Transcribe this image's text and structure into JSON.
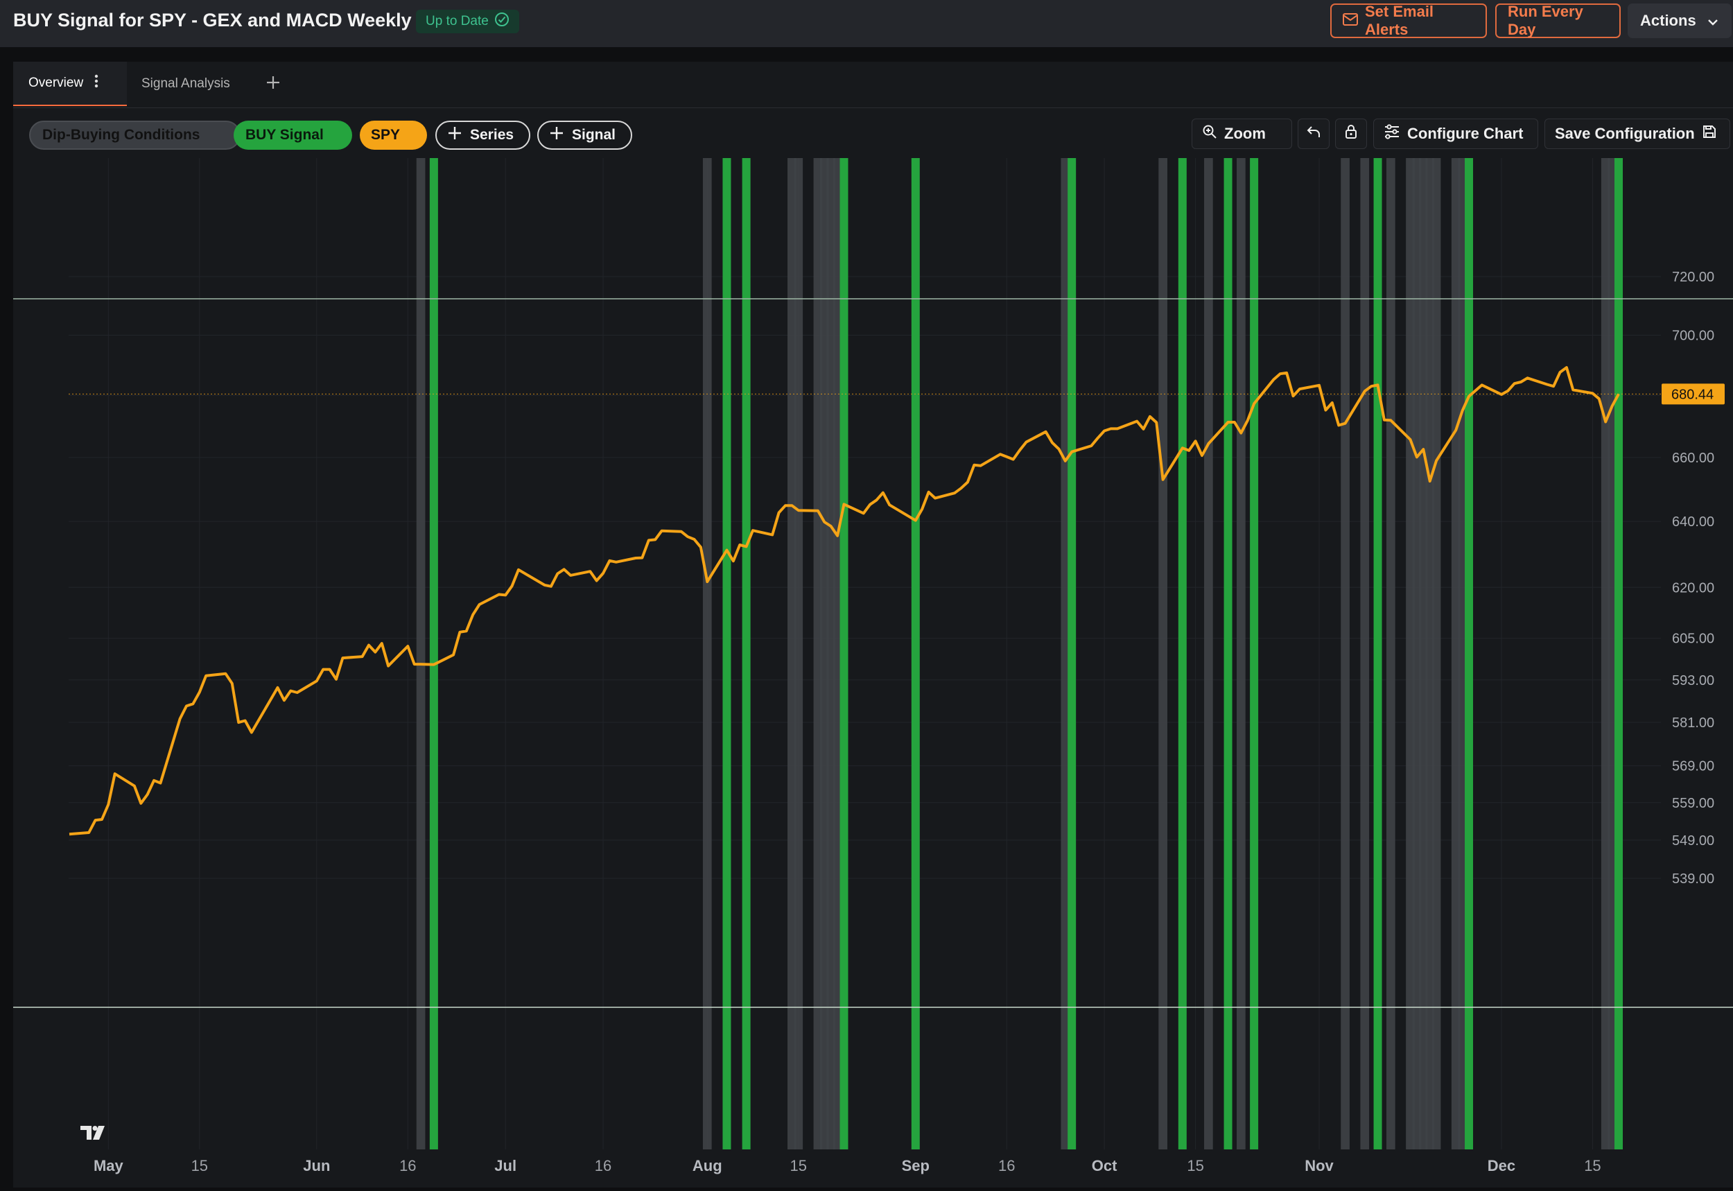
{
  "header": {
    "title": "BUY Signal for SPY - GEX and MACD Weekly",
    "status": "Up to Date",
    "email_alerts_label": "Set Email Alerts",
    "run_label": "Run Every Day",
    "actions_label": "Actions"
  },
  "tabs": [
    {
      "label": "Overview",
      "active": true
    },
    {
      "label": "Signal Analysis",
      "active": false
    }
  ],
  "toolbar": {
    "chips": [
      "Dip-Buying Conditions",
      "BUY Signal",
      "SPY"
    ],
    "add_series_label": "Series",
    "add_signal_label": "Signal",
    "zoom_label": "Zoom",
    "configure_label": "Configure Chart",
    "save_label": "Save Configuration"
  },
  "colors": {
    "accent": "#ff6b3d",
    "series": "#f5a417",
    "buy_signal": "#25a43e",
    "condition": "#3f4247"
  },
  "chart_data": {
    "type": "line",
    "title": "",
    "series": [
      {
        "name": "SPY",
        "color": "#f5a417",
        "values": [
          {
            "x": "2025-04-25",
            "y": 550.6
          },
          {
            "x": "2025-04-28",
            "y": 551.0
          },
          {
            "x": "2025-04-29",
            "y": 554.3
          },
          {
            "x": "2025-04-30",
            "y": 554.5
          },
          {
            "x": "2025-05-01",
            "y": 558.5
          },
          {
            "x": "2025-05-02",
            "y": 566.8
          },
          {
            "x": "2025-05-05",
            "y": 563.5
          },
          {
            "x": "2025-05-06",
            "y": 558.8
          },
          {
            "x": "2025-05-07",
            "y": 561.2
          },
          {
            "x": "2025-05-08",
            "y": 565.0
          },
          {
            "x": "2025-05-09",
            "y": 564.3
          },
          {
            "x": "2025-05-12",
            "y": 582.0
          },
          {
            "x": "2025-05-13",
            "y": 585.6
          },
          {
            "x": "2025-05-14",
            "y": 586.2
          },
          {
            "x": "2025-05-15",
            "y": 589.5
          },
          {
            "x": "2025-05-16",
            "y": 594.2
          },
          {
            "x": "2025-05-19",
            "y": 594.8
          },
          {
            "x": "2025-05-20",
            "y": 592.0
          },
          {
            "x": "2025-05-21",
            "y": 581.0
          },
          {
            "x": "2025-05-22",
            "y": 581.5
          },
          {
            "x": "2025-05-23",
            "y": 578.2
          },
          {
            "x": "2025-05-27",
            "y": 590.8
          },
          {
            "x": "2025-05-28",
            "y": 587.2
          },
          {
            "x": "2025-05-29",
            "y": 589.9
          },
          {
            "x": "2025-05-30",
            "y": 589.4
          },
          {
            "x": "2025-06-02",
            "y": 592.7
          },
          {
            "x": "2025-06-03",
            "y": 596.0
          },
          {
            "x": "2025-06-04",
            "y": 596.0
          },
          {
            "x": "2025-06-05",
            "y": 593.2
          },
          {
            "x": "2025-06-06",
            "y": 599.3
          },
          {
            "x": "2025-06-09",
            "y": 599.7
          },
          {
            "x": "2025-06-10",
            "y": 603.0
          },
          {
            "x": "2025-06-11",
            "y": 601.0
          },
          {
            "x": "2025-06-12",
            "y": 603.5
          },
          {
            "x": "2025-06-13",
            "y": 597.0
          },
          {
            "x": "2025-06-16",
            "y": 602.7
          },
          {
            "x": "2025-06-17",
            "y": 597.5
          },
          {
            "x": "2025-06-18",
            "y": 597.5
          },
          {
            "x": "2025-06-20",
            "y": 597.4
          },
          {
            "x": "2025-06-23",
            "y": 600.2
          },
          {
            "x": "2025-06-24",
            "y": 606.8
          },
          {
            "x": "2025-06-25",
            "y": 607.1
          },
          {
            "x": "2025-06-26",
            "y": 611.9
          },
          {
            "x": "2025-06-27",
            "y": 614.9
          },
          {
            "x": "2025-06-30",
            "y": 617.9
          },
          {
            "x": "2025-07-01",
            "y": 617.7
          },
          {
            "x": "2025-07-02",
            "y": 620.4
          },
          {
            "x": "2025-07-03",
            "y": 625.3
          },
          {
            "x": "2025-07-07",
            "y": 620.7
          },
          {
            "x": "2025-07-08",
            "y": 620.3
          },
          {
            "x": "2025-07-09",
            "y": 624.1
          },
          {
            "x": "2025-07-10",
            "y": 625.4
          },
          {
            "x": "2025-07-11",
            "y": 623.6
          },
          {
            "x": "2025-07-14",
            "y": 624.8
          },
          {
            "x": "2025-07-15",
            "y": 622.0
          },
          {
            "x": "2025-07-16",
            "y": 624.2
          },
          {
            "x": "2025-07-17",
            "y": 628.0
          },
          {
            "x": "2025-07-18",
            "y": 627.6
          },
          {
            "x": "2025-07-21",
            "y": 628.8
          },
          {
            "x": "2025-07-22",
            "y": 628.9
          },
          {
            "x": "2025-07-23",
            "y": 634.2
          },
          {
            "x": "2025-07-24",
            "y": 634.4
          },
          {
            "x": "2025-07-25",
            "y": 637.1
          },
          {
            "x": "2025-07-28",
            "y": 636.9
          },
          {
            "x": "2025-07-29",
            "y": 635.3
          },
          {
            "x": "2025-07-30",
            "y": 634.5
          },
          {
            "x": "2025-07-31",
            "y": 632.1
          },
          {
            "x": "2025-08-01",
            "y": 621.7
          },
          {
            "x": "2025-08-04",
            "y": 631.2
          },
          {
            "x": "2025-08-05",
            "y": 627.9
          },
          {
            "x": "2025-08-06",
            "y": 632.8
          },
          {
            "x": "2025-08-07",
            "y": 632.3
          },
          {
            "x": "2025-08-08",
            "y": 637.2
          },
          {
            "x": "2025-08-11",
            "y": 635.9
          },
          {
            "x": "2025-08-12",
            "y": 642.7
          },
          {
            "x": "2025-08-13",
            "y": 644.9
          },
          {
            "x": "2025-08-14",
            "y": 644.9
          },
          {
            "x": "2025-08-15",
            "y": 643.4
          },
          {
            "x": "2025-08-18",
            "y": 643.3
          },
          {
            "x": "2025-08-19",
            "y": 639.8
          },
          {
            "x": "2025-08-20",
            "y": 638.5
          },
          {
            "x": "2025-08-21",
            "y": 635.6
          },
          {
            "x": "2025-08-22",
            "y": 645.3
          },
          {
            "x": "2025-08-25",
            "y": 642.5
          },
          {
            "x": "2025-08-26",
            "y": 645.2
          },
          {
            "x": "2025-08-27",
            "y": 646.6
          },
          {
            "x": "2025-08-28",
            "y": 648.9
          },
          {
            "x": "2025-08-29",
            "y": 645.1
          },
          {
            "x": "2025-09-02",
            "y": 640.3
          },
          {
            "x": "2025-09-03",
            "y": 643.8
          },
          {
            "x": "2025-09-04",
            "y": 649.1
          },
          {
            "x": "2025-09-05",
            "y": 647.2
          },
          {
            "x": "2025-09-08",
            "y": 648.8
          },
          {
            "x": "2025-09-09",
            "y": 650.3
          },
          {
            "x": "2025-09-10",
            "y": 652.2
          },
          {
            "x": "2025-09-11",
            "y": 657.6
          },
          {
            "x": "2025-09-12",
            "y": 657.4
          },
          {
            "x": "2025-09-15",
            "y": 661.0
          },
          {
            "x": "2025-09-16",
            "y": 660.2
          },
          {
            "x": "2025-09-17",
            "y": 659.4
          },
          {
            "x": "2025-09-18",
            "y": 662.3
          },
          {
            "x": "2025-09-19",
            "y": 664.9
          },
          {
            "x": "2025-09-22",
            "y": 668.2
          },
          {
            "x": "2025-09-23",
            "y": 664.7
          },
          {
            "x": "2025-09-24",
            "y": 662.7
          },
          {
            "x": "2025-09-25",
            "y": 658.9
          },
          {
            "x": "2025-09-26",
            "y": 661.8
          },
          {
            "x": "2025-09-29",
            "y": 663.7
          },
          {
            "x": "2025-09-30",
            "y": 666.2
          },
          {
            "x": "2025-10-01",
            "y": 668.5
          },
          {
            "x": "2025-10-02",
            "y": 669.2
          },
          {
            "x": "2025-10-03",
            "y": 669.2
          },
          {
            "x": "2025-10-06",
            "y": 671.6
          },
          {
            "x": "2025-10-07",
            "y": 669.1
          },
          {
            "x": "2025-10-08",
            "y": 673.1
          },
          {
            "x": "2025-10-09",
            "y": 671.2
          },
          {
            "x": "2025-10-10",
            "y": 653.0
          },
          {
            "x": "2025-10-13",
            "y": 663.0
          },
          {
            "x": "2025-10-14",
            "y": 662.2
          },
          {
            "x": "2025-10-15",
            "y": 665.2
          },
          {
            "x": "2025-10-16",
            "y": 660.6
          },
          {
            "x": "2025-10-17",
            "y": 664.4
          },
          {
            "x": "2025-10-20",
            "y": 671.3
          },
          {
            "x": "2025-10-21",
            "y": 671.3
          },
          {
            "x": "2025-10-22",
            "y": 667.8
          },
          {
            "x": "2025-10-23",
            "y": 671.8
          },
          {
            "x": "2025-10-24",
            "y": 677.3
          },
          {
            "x": "2025-10-27",
            "y": 685.2
          },
          {
            "x": "2025-10-28",
            "y": 687.1
          },
          {
            "x": "2025-10-29",
            "y": 687.4
          },
          {
            "x": "2025-10-30",
            "y": 679.8
          },
          {
            "x": "2025-10-31",
            "y": 682.1
          },
          {
            "x": "2025-11-03",
            "y": 683.3
          },
          {
            "x": "2025-11-04",
            "y": 675.2
          },
          {
            "x": "2025-11-05",
            "y": 677.6
          },
          {
            "x": "2025-11-06",
            "y": 670.3
          },
          {
            "x": "2025-11-07",
            "y": 670.9
          },
          {
            "x": "2025-11-10",
            "y": 681.4
          },
          {
            "x": "2025-11-11",
            "y": 683.0
          },
          {
            "x": "2025-11-12",
            "y": 683.4
          },
          {
            "x": "2025-11-13",
            "y": 672.0
          },
          {
            "x": "2025-11-14",
            "y": 671.9
          },
          {
            "x": "2025-11-17",
            "y": 665.7
          },
          {
            "x": "2025-11-18",
            "y": 660.1
          },
          {
            "x": "2025-11-19",
            "y": 662.6
          },
          {
            "x": "2025-11-20",
            "y": 652.5
          },
          {
            "x": "2025-11-21",
            "y": 659.0
          },
          {
            "x": "2025-11-24",
            "y": 668.7
          },
          {
            "x": "2025-11-25",
            "y": 675.0
          },
          {
            "x": "2025-11-26",
            "y": 679.7
          },
          {
            "x": "2025-11-28",
            "y": 683.4
          },
          {
            "x": "2025-12-01",
            "y": 680.3
          },
          {
            "x": "2025-12-02",
            "y": 681.5
          },
          {
            "x": "2025-12-03",
            "y": 683.9
          },
          {
            "x": "2025-12-04",
            "y": 684.4
          },
          {
            "x": "2025-12-05",
            "y": 685.7
          },
          {
            "x": "2025-12-08",
            "y": 683.6
          },
          {
            "x": "2025-12-09",
            "y": 683.0
          },
          {
            "x": "2025-12-10",
            "y": 687.6
          },
          {
            "x": "2025-12-11",
            "y": 689.2
          },
          {
            "x": "2025-12-12",
            "y": 681.8
          },
          {
            "x": "2025-12-15",
            "y": 680.7
          },
          {
            "x": "2025-12-16",
            "y": 678.9
          },
          {
            "x": "2025-12-17",
            "y": 671.4
          },
          {
            "x": "2025-12-18",
            "y": 676.5
          },
          {
            "x": "2025-12-19",
            "y": 680.44
          }
        ]
      }
    ],
    "last_value": "680.44",
    "buy_signal_dates": [
      "2025-06-20",
      "2025-08-04",
      "2025-08-07",
      "2025-08-22",
      "2025-09-02",
      "2025-09-26",
      "2025-10-13",
      "2025-10-20",
      "2025-10-24",
      "2025-11-12",
      "2025-11-26",
      "2025-12-19"
    ],
    "condition_dates": [
      "2025-06-18",
      "2025-08-01",
      "2025-08-14",
      "2025-08-15",
      "2025-08-18",
      "2025-08-19",
      "2025-08-20",
      "2025-08-21",
      "2025-09-25",
      "2025-10-10",
      "2025-10-17",
      "2025-10-22",
      "2025-11-07",
      "2025-11-10",
      "2025-11-14",
      "2025-11-17",
      "2025-11-18",
      "2025-11-19",
      "2025-11-20",
      "2025-11-21",
      "2025-11-24",
      "2025-11-25",
      "2025-12-17",
      "2025-12-18"
    ],
    "y_ticks": [
      "720.00",
      "700.00",
      "680.00",
      "660.00",
      "640.00",
      "620.00",
      "605.00",
      "593.00",
      "581.00",
      "569.00",
      "559.00",
      "549.00",
      "539.00"
    ],
    "x_ticks": [
      {
        "label": "May",
        "date": "2025-05-01",
        "bold": true
      },
      {
        "label": "15",
        "date": "2025-05-15",
        "bold": false
      },
      {
        "label": "Jun",
        "date": "2025-06-02",
        "bold": true
      },
      {
        "label": "16",
        "date": "2025-06-16",
        "bold": false
      },
      {
        "label": "Jul",
        "date": "2025-07-01",
        "bold": true
      },
      {
        "label": "16",
        "date": "2025-07-16",
        "bold": false
      },
      {
        "label": "Aug",
        "date": "2025-08-01",
        "bold": true
      },
      {
        "label": "15",
        "date": "2025-08-15",
        "bold": false
      },
      {
        "label": "Sep",
        "date": "2025-09-02",
        "bold": true
      },
      {
        "label": "16",
        "date": "2025-09-16",
        "bold": false
      },
      {
        "label": "Oct",
        "date": "2025-10-01",
        "bold": true
      },
      {
        "label": "15",
        "date": "2025-10-15",
        "bold": false
      },
      {
        "label": "Nov",
        "date": "2025-11-03",
        "bold": true
      },
      {
        "label": "Dec",
        "date": "2025-12-01",
        "bold": true
      },
      {
        "label": "15",
        "date": "2025-12-15",
        "bold": false
      }
    ],
    "scale": "log",
    "grid": true
  }
}
